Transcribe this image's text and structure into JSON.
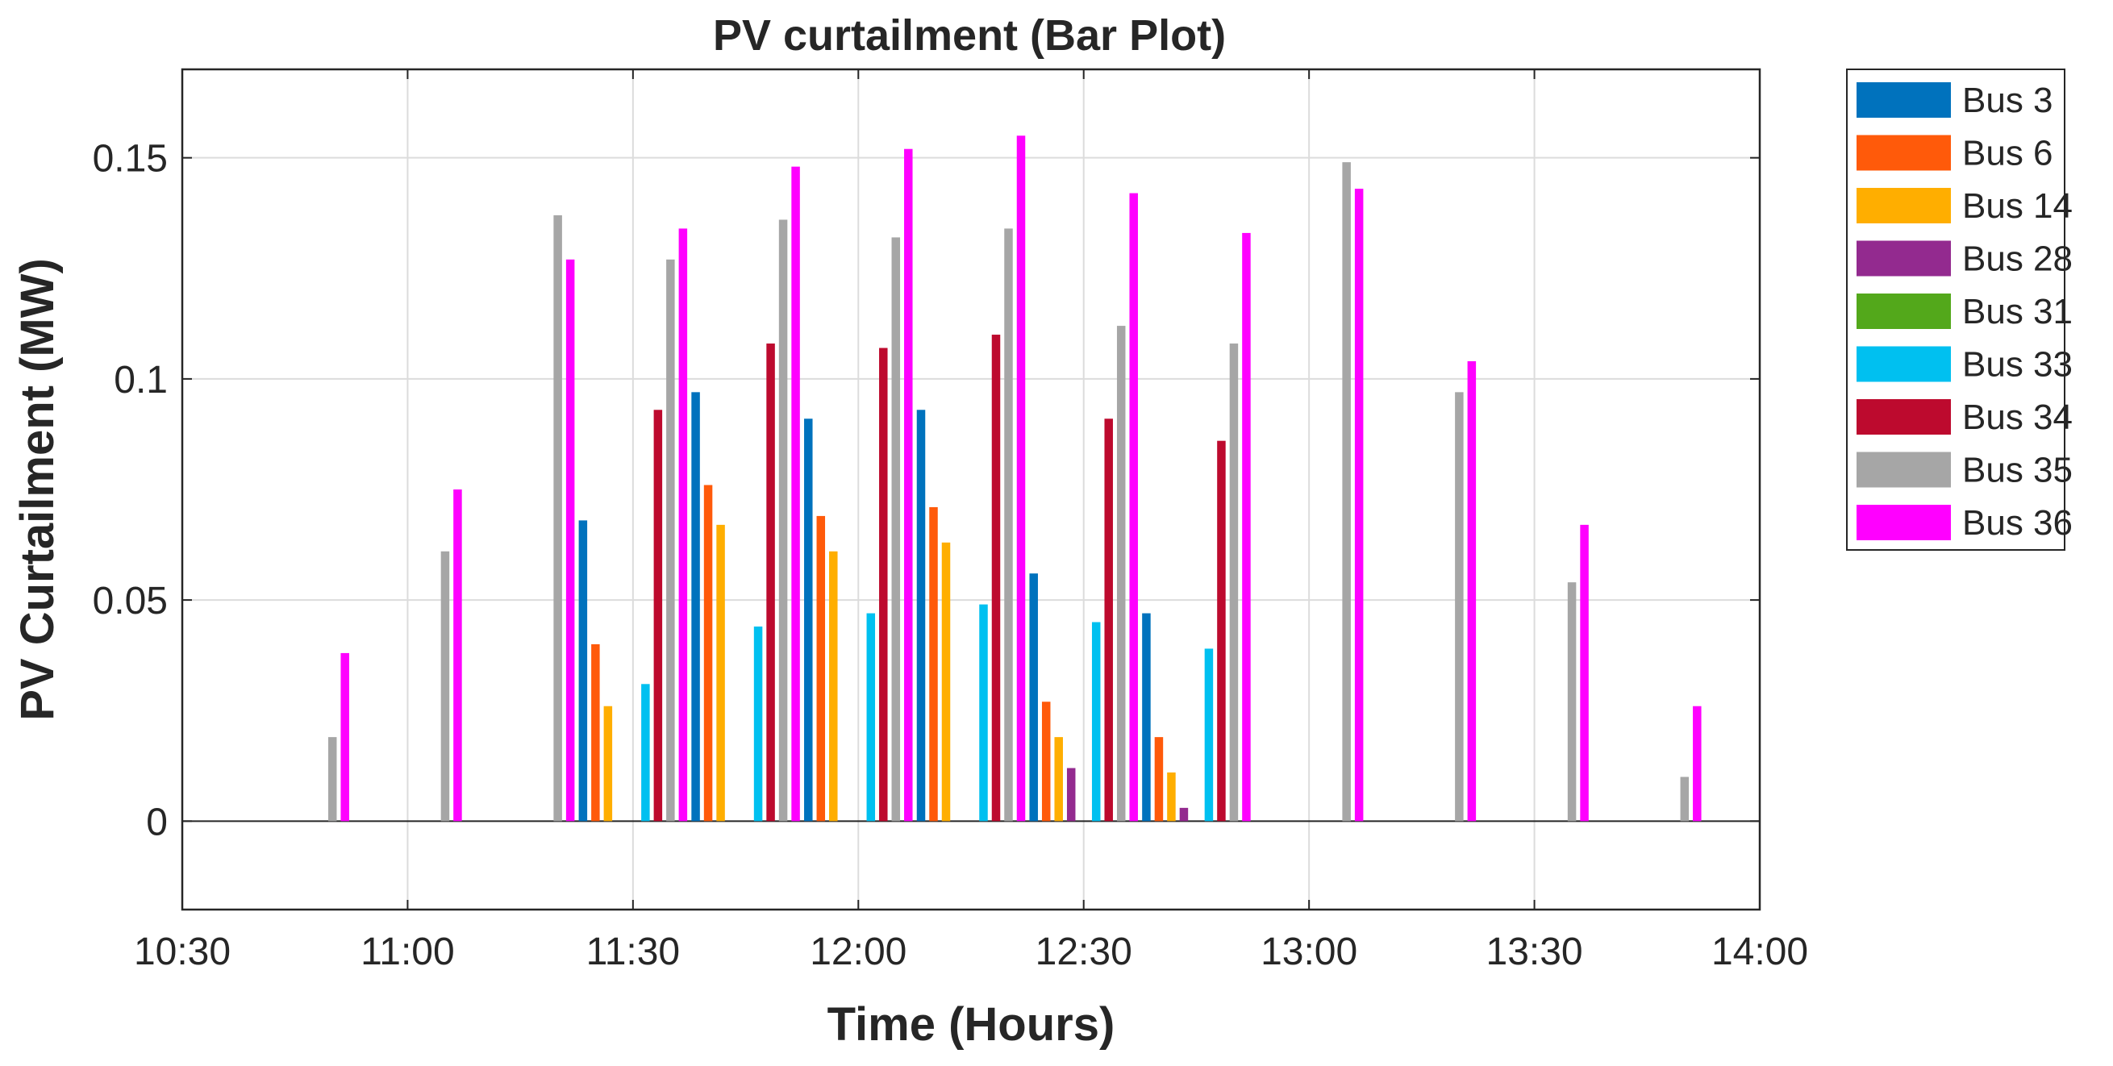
{
  "chart_data": {
    "type": "bar",
    "title": "PV curtailment (Bar Plot)",
    "xlabel": "Time (Hours)",
    "ylabel": "PV Curtailment (MW)",
    "x_axis_type": "time",
    "xlim": [
      "10:30",
      "14:00"
    ],
    "ylim": [
      -0.02,
      0.17
    ],
    "xticks": [
      "10:30",
      "11:00",
      "11:30",
      "12:00",
      "12:30",
      "13:00",
      "13:30",
      "14:00"
    ],
    "yticks": [
      0,
      0.05,
      0.1,
      0.15
    ],
    "ytick_labels": [
      "0",
      "0.05",
      "0.1",
      "0.15"
    ],
    "grid": true,
    "legend_position": "outside-top-right",
    "categories": [
      "10:45",
      "11:00",
      "11:15",
      "11:30",
      "11:45",
      "12:00",
      "12:15",
      "12:30",
      "12:45",
      "13:00",
      "13:15",
      "13:30",
      "13:45"
    ],
    "series": [
      {
        "name": "Bus 3",
        "color": "#0072BD",
        "values": [
          0,
          0,
          0,
          0.068,
          0.097,
          0.091,
          0.093,
          0.056,
          0.047,
          0,
          0,
          0,
          0
        ]
      },
      {
        "name": "Bus 6",
        "color": "#FF5A0A",
        "values": [
          0,
          0,
          0,
          0.04,
          0.076,
          0.069,
          0.071,
          0.027,
          0.019,
          0,
          0,
          0,
          0
        ]
      },
      {
        "name": "Bus 14",
        "color": "#FFAE00",
        "values": [
          0,
          0,
          0,
          0.026,
          0.067,
          0.061,
          0.063,
          0.019,
          0.011,
          0,
          0,
          0,
          0
        ]
      },
      {
        "name": "Bus 28",
        "color": "#932A8F",
        "values": [
          0,
          0,
          0,
          0,
          0,
          0,
          0,
          0.012,
          0.003,
          0,
          0,
          0,
          0
        ]
      },
      {
        "name": "Bus 31",
        "color": "#53A81B",
        "values": [
          0,
          0,
          0,
          0,
          0,
          0,
          0,
          0,
          0,
          0,
          0,
          0,
          0
        ]
      },
      {
        "name": "Bus 33",
        "color": "#00C0F0",
        "values": [
          0,
          0,
          0,
          0.031,
          0.044,
          0.047,
          0.049,
          0.045,
          0.039,
          0,
          0,
          0,
          0
        ]
      },
      {
        "name": "Bus 34",
        "color": "#BD0A2E",
        "values": [
          0,
          0,
          0,
          0.093,
          0.108,
          0.107,
          0.11,
          0.091,
          0.086,
          0,
          0,
          0,
          0
        ]
      },
      {
        "name": "Bus 35",
        "color": "#A6A6A6",
        "values": [
          0.019,
          0.061,
          0.137,
          0.127,
          0.136,
          0.132,
          0.134,
          0.112,
          0.108,
          0.149,
          0.097,
          0.054,
          0.01
        ]
      },
      {
        "name": "Bus 36",
        "color": "#FF00FF",
        "values": [
          0.038,
          0.075,
          0.127,
          0.134,
          0.148,
          0.152,
          0.155,
          0.142,
          0.133,
          0.143,
          0.104,
          0.067,
          0.026
        ]
      }
    ]
  }
}
